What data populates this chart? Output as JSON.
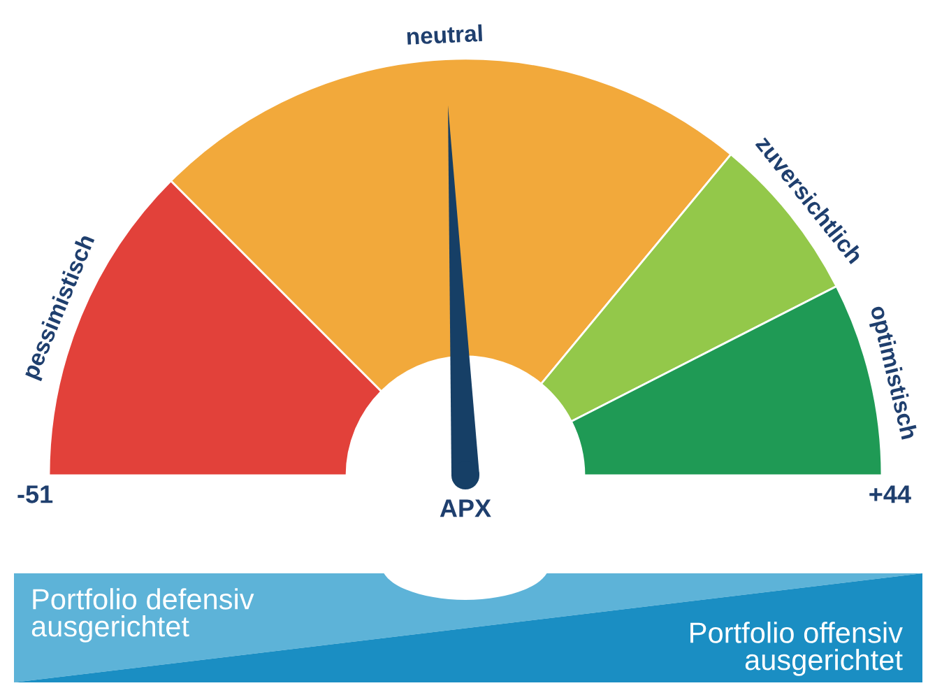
{
  "chart_data": {
    "type": "donut",
    "categories": [
      "pessimistisch",
      "neutral",
      "zuversichtlich",
      "optimistisch"
    ],
    "values": [
      25,
      47,
      13,
      15
    ],
    "colors": [
      "#e2413a",
      "#f2a93b",
      "#93c84a",
      "#1f9a55"
    ],
    "needle": "neutral",
    "annotations": [
      "-51",
      "+44",
      "APX",
      "Portfolio defensiv\nausgerichtet",
      "Portfolio offensiv\nausgerichtet"
    ]
  }
}
